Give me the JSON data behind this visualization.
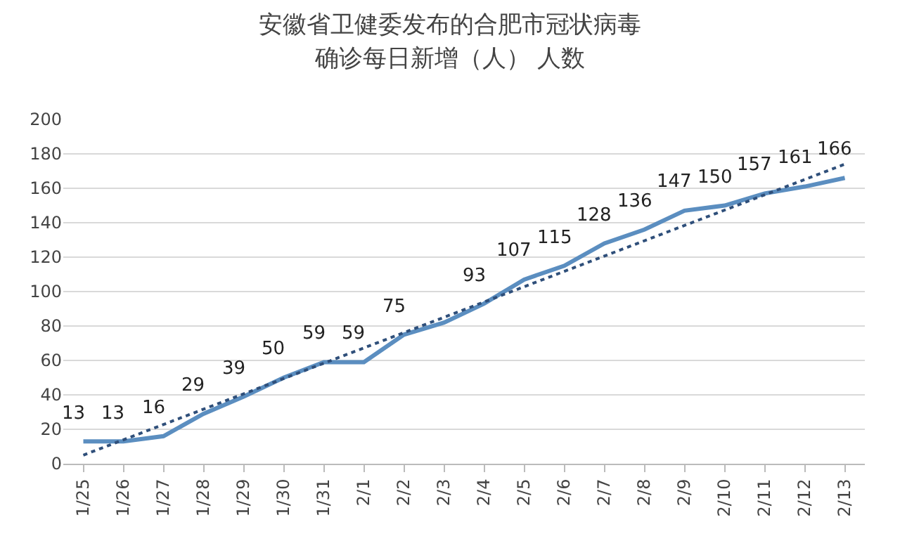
{
  "chart_data": {
    "type": "line",
    "title": "安徽省卫健委发布的合肥市冠状病毒确诊每日新增（人） 人数",
    "categories": [
      "1/25",
      "1/26",
      "1/27",
      "1/28",
      "1/29",
      "1/30",
      "1/31",
      "2/1",
      "2/2",
      "2/3",
      "2/4",
      "2/5",
      "2/6",
      "2/7",
      "2/8",
      "2/9",
      "2/10",
      "2/11",
      "2/12",
      "2/13"
    ],
    "series": [
      {
        "color": "#5b8ec0",
        "values": [
          13,
          13,
          16,
          29,
          39,
          50,
          59,
          59,
          75,
          82,
          93,
          107,
          115,
          128,
          136,
          147,
          150,
          157,
          161,
          166
        ],
        "value_labels": [
          "13",
          "13",
          "16",
          "29",
          "39",
          "50",
          "59",
          "59",
          "75",
          null,
          "93",
          "107",
          "115",
          "128",
          "136",
          "147",
          "150",
          "157",
          "161",
          "166"
        ]
      },
      {
        "type": "line",
        "color": "#2f4f7a",
        "line_style": "dotted",
        "x": [
          "1/25",
          "2/13"
        ],
        "values": [
          5,
          174
        ]
      }
    ],
    "ylim": [
      0,
      200
    ],
    "yticks": [
      0,
      20,
      40,
      60,
      80,
      100,
      120,
      140,
      160,
      180,
      200
    ],
    "grid": "y",
    "marker": "none"
  }
}
